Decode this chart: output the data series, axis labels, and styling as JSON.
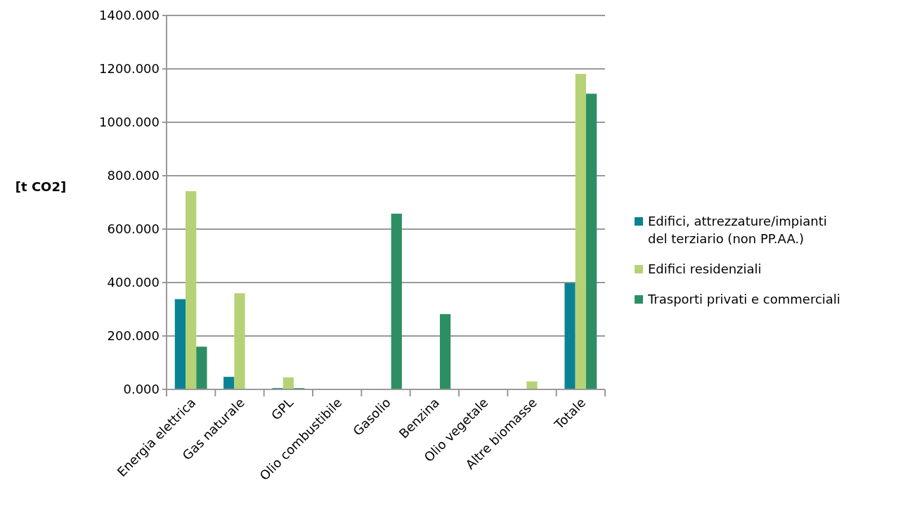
{
  "chart_data": {
    "type": "bar",
    "ylabel": "[t CO2]",
    "categories": [
      "Energia elettrica",
      "Gas naturale",
      "GPL",
      "Olio combustibile",
      "Gasolio",
      "Benzina",
      "Olio vegetale",
      "Altre biomasse",
      "Totale"
    ],
    "series": [
      {
        "name": "Edifici, attrezzature/impianti del terziario (non PP.AA.)",
        "color": "#0b8294",
        "values": [
          338,
          47,
          5,
          0,
          null,
          0,
          0,
          0,
          398
        ]
      },
      {
        "name": "Edifici residenziali",
        "color": "#b6d277",
        "values": [
          742,
          360,
          45,
          0,
          0,
          0,
          0,
          30,
          1181
        ]
      },
      {
        "name": "Trasporti privati e commerciali",
        "color": "#2e8e63",
        "values": [
          160,
          0,
          5,
          0,
          658,
          282,
          0,
          0,
          1107
        ]
      }
    ],
    "ylim": [
      0,
      1400
    ],
    "yticks": [
      {
        "value": 0,
        "label": "0.000"
      },
      {
        "value": 200,
        "label": "200.000"
      },
      {
        "value": 400,
        "label": "400.000"
      },
      {
        "value": 600,
        "label": "600.000"
      },
      {
        "value": 800,
        "label": "800.000"
      },
      {
        "value": 1000,
        "label": "1000.000"
      },
      {
        "value": 1200,
        "label": "1200.000"
      },
      {
        "value": 1400,
        "label": "1400.000"
      }
    ],
    "grid": "y",
    "legend": "right"
  }
}
